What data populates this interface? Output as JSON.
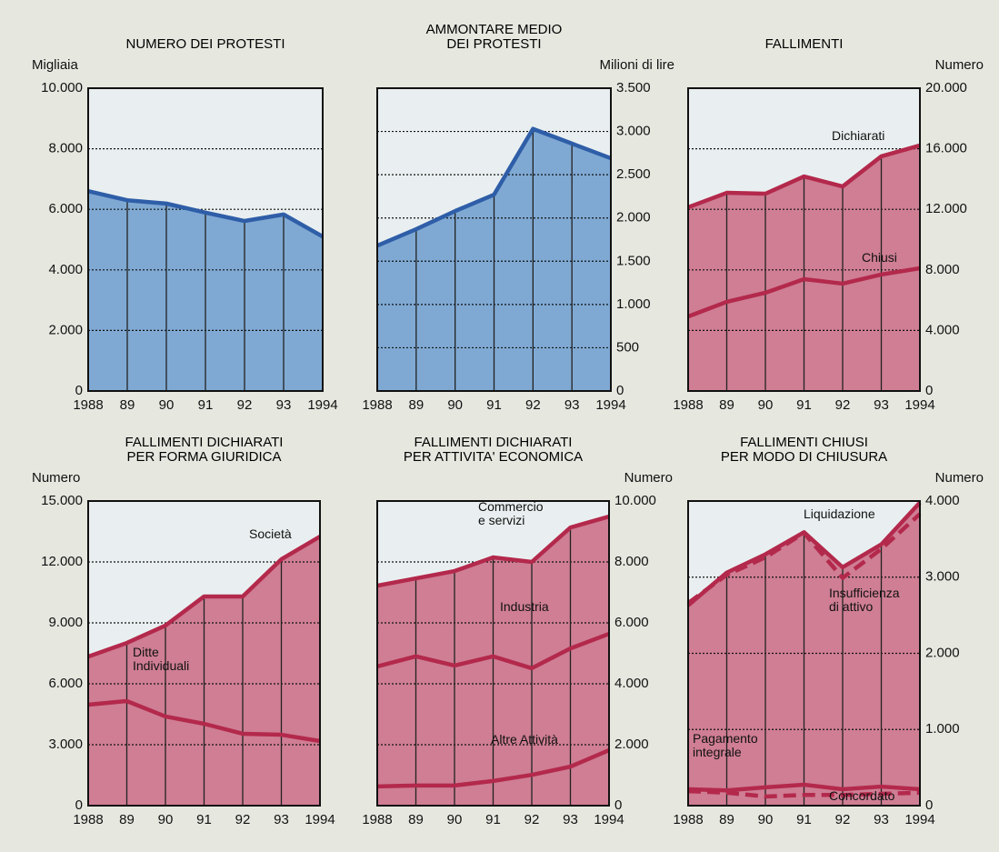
{
  "chart_data": [
    {
      "type": "area",
      "title": "NUMERO DEI PROTESTI",
      "y_label": "Migliaia",
      "y_axis": "left",
      "categories": [
        "1988",
        "89",
        "90",
        "91",
        "92",
        "93",
        "1994"
      ],
      "ylim": [
        0,
        10000
      ],
      "yticks": [
        0,
        {
          "value": 2000,
          "label": "2.000"
        },
        {
          "value": 4000,
          "label": "4.000"
        },
        {
          "value": 6000,
          "label": "6.000"
        },
        {
          "value": 8000,
          "label": "8.000"
        },
        {
          "value": 10000,
          "label": "10.000"
        }
      ],
      "grid": true,
      "series": [
        {
          "name": null,
          "color": "#2f5ea8",
          "fill": "#7fa9d3",
          "values": [
            6600,
            6300,
            6190,
            5890,
            5615,
            5830,
            5100
          ]
        }
      ]
    },
    {
      "type": "area",
      "title": "AMMONTARE MEDIO\nDEI PROTESTI",
      "y_label": "Milioni di lire",
      "y_axis": "right",
      "categories": [
        "1988",
        "89",
        "90",
        "91",
        "92",
        "93",
        "1994"
      ],
      "ylim": [
        0,
        3500
      ],
      "yticks": [
        0,
        500,
        {
          "value": 1000,
          "label": "1.000"
        },
        {
          "value": 1500,
          "label": "1.500"
        },
        {
          "value": 2000,
          "label": "2.000"
        },
        {
          "value": 2500,
          "label": "2.500"
        },
        {
          "value": 3000,
          "label": "3.000"
        },
        {
          "value": 3500,
          "label": "3.500"
        }
      ],
      "grid": true,
      "series": [
        {
          "name": null,
          "color": "#2f5ea8",
          "fill": "#7fa9d3",
          "values": [
            1680,
            1870,
            2080,
            2270,
            3030,
            2860,
            2690
          ]
        }
      ]
    },
    {
      "type": "area",
      "title": "FALLIMENTI",
      "y_label": "Numero",
      "y_axis": "right",
      "categories": [
        "1988",
        "89",
        "90",
        "91",
        "92",
        "93",
        "1994"
      ],
      "ylim": [
        0,
        20000
      ],
      "yticks": [
        0,
        {
          "value": 4000,
          "label": "4.000"
        },
        {
          "value": 8000,
          "label": "8.000"
        },
        {
          "value": 12000,
          "label": "12.000"
        },
        {
          "value": 16000,
          "label": "16.000"
        },
        {
          "value": 20000,
          "label": "20.000"
        }
      ],
      "grid": true,
      "series": [
        {
          "name": "Dichiarati",
          "color": "#b3294c",
          "fill": "#cf7e94",
          "values": [
            12130,
            13090,
            13030,
            14170,
            13510,
            15500,
            16220
          ]
        },
        {
          "name": "Chiusi",
          "color": "#b3294c",
          "values": [
            4920,
            5890,
            6490,
            7390,
            7090,
            7690,
            8110
          ]
        }
      ]
    },
    {
      "type": "area",
      "title": "FALLIMENTI DICHIARATI\nPER FORMA GIURIDICA",
      "y_label": "Numero",
      "y_axis": "left",
      "categories": [
        "1988",
        "89",
        "90",
        "91",
        "92",
        "93",
        "1994"
      ],
      "ylim": [
        0,
        15000
      ],
      "yticks": [
        0,
        {
          "value": 3000,
          "label": "3.000"
        },
        {
          "value": 6000,
          "label": "6.000"
        },
        {
          "value": 9000,
          "label": "9.000"
        },
        {
          "value": 12000,
          "label": "12.000"
        },
        {
          "value": 15000,
          "label": "15.000"
        }
      ],
      "grid": true,
      "series": [
        {
          "name": "Società",
          "color": "#b3294c",
          "fill": "#cf7e94",
          "values": [
            7340,
            8010,
            8870,
            10300,
            10300,
            12130,
            13250
          ]
        },
        {
          "name": "Ditte\nIndividuali",
          "color": "#b3294c",
          "values": [
            4970,
            5150,
            4390,
            4030,
            3540,
            3490,
            3180
          ]
        }
      ]
    },
    {
      "type": "area",
      "title": "FALLIMENTI DICHIARATI\nPER ATTIVITA' ECONOMICA",
      "y_label": "Numero",
      "y_axis": "right",
      "categories": [
        "1988",
        "89",
        "90",
        "91",
        "92",
        "93",
        "1994"
      ],
      "ylim": [
        0,
        10000
      ],
      "yticks": [
        0,
        {
          "value": 2000,
          "label": "2.000"
        },
        {
          "value": 4000,
          "label": "4.000"
        },
        {
          "value": 6000,
          "label": "6.000"
        },
        {
          "value": 8000,
          "label": "8.000"
        },
        {
          "value": 10000,
          "label": "10.000"
        }
      ],
      "grid": true,
      "series": [
        {
          "name": "Commercio\ne servizi",
          "color": "#b3294c",
          "fill": "#cf7e94",
          "values": [
            7220,
            7460,
            7700,
            8150,
            8000,
            9130,
            9490
          ]
        },
        {
          "name": "Industria",
          "color": "#b3294c",
          "values": [
            4570,
            4900,
            4600,
            4900,
            4510,
            5160,
            5640
          ]
        },
        {
          "name": "Altre Attività",
          "color": "#b3294c",
          "values": [
            630,
            660,
            660,
            810,
            1010,
            1280,
            1820
          ]
        }
      ]
    },
    {
      "type": "area",
      "title": "FALLIMENTI CHIUSI\nPER MODO DI CHIUSURA",
      "y_label": "Numero",
      "y_axis": "right",
      "categories": [
        "1988",
        "89",
        "90",
        "91",
        "92",
        "93",
        "1994"
      ],
      "ylim": [
        0,
        4000
      ],
      "yticks": [
        0,
        {
          "value": 1000,
          "label": "1.000"
        },
        {
          "value": 2000,
          "label": "2.000"
        },
        {
          "value": 3000,
          "label": "3.000"
        },
        {
          "value": 4000,
          "label": "4.000"
        }
      ],
      "grid": true,
      "series": [
        {
          "name": "Liquidazione",
          "color": "#b3294c",
          "fill": "#cf7e94",
          "values": [
            2630,
            3060,
            3300,
            3590,
            3130,
            3430,
            3980
          ]
        },
        {
          "name": "Insufficienza\ndi attivo",
          "color": "#b3294c",
          "dashed": true,
          "values": [
            2660,
            3030,
            3260,
            3580,
            2990,
            3370,
            3830
          ]
        },
        {
          "name": "Pagamento\nintegrale",
          "color": "#b3294c",
          "values": [
            215,
            200,
            240,
            275,
            215,
            250,
            215
          ]
        },
        {
          "name": "Concordato",
          "color": "#b3294c",
          "dashed": true,
          "values": [
            190,
            170,
            120,
            140,
            140,
            155,
            170
          ]
        }
      ]
    }
  ]
}
